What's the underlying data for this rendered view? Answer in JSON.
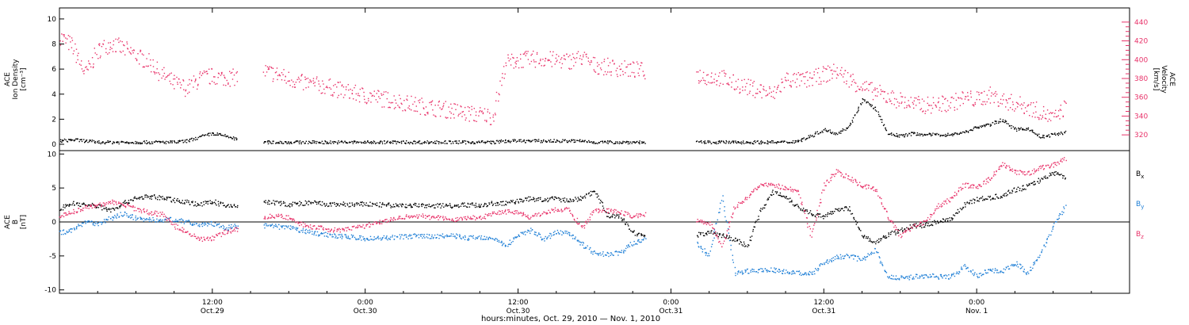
{
  "figure": {
    "xaxis_title": "hours:minutes, Oct. 29, 2010 — Nov. 1, 2010",
    "x_ticks": [
      {
        "value": 12,
        "line1": "12:00",
        "line2": "Oct.29"
      },
      {
        "value": 24,
        "line1": "0:00",
        "line2": "Oct.30"
      },
      {
        "value": 36,
        "line1": "12:00",
        "line2": "Oct.30"
      },
      {
        "value": 48,
        "line1": "0:00",
        "line2": "Oct.31"
      },
      {
        "value": 60,
        "line1": "12:00",
        "line2": "Oct.31"
      },
      {
        "value": 72,
        "line1": "0:00",
        "line2": "Nov. 1"
      }
    ],
    "xlim": [
      0,
      84
    ],
    "top_panel": {
      "left_label_lines": [
        "ACE",
        "Ion Density",
        "[cm⁻³]"
      ],
      "right_label_lines": [
        "ACE",
        "Velocity",
        "[km/s]"
      ],
      "left_ticks": [
        "0",
        "2",
        "4",
        "6",
        "8",
        "10"
      ],
      "right_ticks": [
        "320",
        "340",
        "360",
        "380",
        "400",
        "420",
        "440"
      ]
    },
    "bottom_panel": {
      "left_label_lines": [
        "ACE",
        "B",
        "[nT]"
      ],
      "left_ticks": [
        "-10",
        "-5",
        "0",
        "5",
        "10"
      ],
      "legend": [
        {
          "label": "Bx",
          "base": "B",
          "sub": "x",
          "color": "#000000"
        },
        {
          "label": "By",
          "base": "B",
          "sub": "y",
          "color": "#1f7fd6"
        },
        {
          "label": "Bz",
          "base": "B",
          "sub": "z",
          "color": "#e8336a"
        }
      ]
    }
  },
  "chart_data": [
    {
      "type": "scatter",
      "title": "",
      "xlabel": "hours:minutes, Oct. 29, 2010 — Nov. 1, 2010",
      "ylabel": "ACE Ion Density [cm⁻³]",
      "y2label": "ACE Velocity [km/s]",
      "xlim": [
        0,
        84
      ],
      "ylim": [
        0,
        10.5
      ],
      "y2lim": [
        310,
        450
      ],
      "x_units": "hours from 0:00 Oct. 29, 2010",
      "series": [
        {
          "axis": "left",
          "color": "#000000",
          "x": [
            0,
            1,
            2,
            3,
            4,
            5,
            6,
            7,
            8,
            9,
            10,
            11,
            12,
            13,
            14,
            15,
            16,
            17,
            18,
            19,
            20,
            21,
            22,
            23,
            24,
            25,
            26,
            27,
            28,
            29,
            30,
            31,
            32,
            33,
            34,
            35,
            36,
            37,
            38,
            39,
            40,
            41,
            42,
            43,
            44,
            45,
            46,
            47,
            48,
            49,
            50,
            51,
            52,
            53,
            54,
            55,
            56,
            57,
            58,
            59,
            60,
            61,
            62,
            63,
            64,
            65,
            66,
            67,
            68,
            69,
            70,
            71,
            72,
            73,
            74,
            75,
            76,
            77,
            78,
            79,
            80,
            81,
            82,
            83,
            84
          ],
          "values": [
            0.3,
            0.4,
            0.3,
            0.2,
            0.2,
            0.2,
            0.2,
            0.2,
            0.2,
            0.2,
            0.3,
            0.6,
            0.9,
            0.7,
            0.4,
            null,
            0.2,
            0.2,
            0.2,
            0.2,
            0.2,
            0.2,
            0.2,
            0.2,
            0.2,
            0.2,
            0.2,
            0.2,
            0.2,
            0.2,
            0.2,
            0.2,
            0.2,
            0.2,
            0.2,
            0.3,
            0.3,
            0.3,
            0.3,
            0.3,
            0.3,
            0.3,
            0.2,
            0.2,
            0.2,
            0.2,
            0.2,
            null,
            null,
            null,
            0.2,
            0.2,
            0.2,
            0.2,
            0.2,
            0.2,
            0.2,
            0.2,
            0.3,
            0.7,
            1.2,
            0.9,
            1.5,
            3.6,
            2.9,
            0.9,
            0.7,
            0.9,
            0.8,
            0.8,
            0.8,
            1.0,
            1.4,
            1.6,
            2.0,
            1.2,
            1.3,
            0.6,
            0.8,
            1.0,
            null,
            null,
            null,
            null,
            null
          ]
        },
        {
          "axis": "right",
          "color": "#e8336a",
          "x": [
            0,
            1,
            2,
            3,
            4,
            5,
            6,
            7,
            8,
            9,
            10,
            11,
            12,
            13,
            14,
            15,
            16,
            17,
            18,
            19,
            20,
            21,
            22,
            23,
            24,
            25,
            26,
            27,
            28,
            29,
            30,
            31,
            32,
            33,
            34,
            35,
            36,
            37,
            38,
            39,
            40,
            41,
            42,
            43,
            44,
            45,
            46,
            47,
            48,
            49,
            50,
            51,
            52,
            53,
            54,
            55,
            56,
            57,
            58,
            59,
            60,
            61,
            62,
            63,
            64,
            65,
            66,
            67,
            68,
            69,
            70,
            71,
            72,
            73,
            74,
            75,
            76,
            77,
            78,
            79,
            80,
            81,
            82,
            83,
            84
          ],
          "values": [
            425,
            415,
            385,
            410,
            418,
            412,
            405,
            398,
            385,
            375,
            370,
            380,
            383,
            381,
            382,
            null,
            388,
            385,
            380,
            376,
            374,
            372,
            368,
            365,
            362,
            360,
            357,
            355,
            352,
            350,
            348,
            346,
            343,
            342,
            340,
            397,
            400,
            401,
            401,
            400,
            399,
            403,
            394,
            393,
            391,
            390,
            388,
            null,
            null,
            null,
            384,
            382,
            381,
            375,
            371,
            368,
            363,
            380,
            378,
            380,
            385,
            388,
            380,
            371,
            366,
            361,
            357,
            353,
            352,
            353,
            354,
            360,
            358,
            363,
            357,
            354,
            350,
            345,
            337,
            352,
            null,
            null,
            null,
            null,
            null
          ]
        }
      ]
    },
    {
      "type": "scatter",
      "title": "",
      "xlabel": "hours:minutes, Oct. 29, 2010 — Nov. 1, 2010",
      "ylabel": "ACE B [nT]",
      "xlim": [
        0,
        84
      ],
      "ylim": [
        -10.5,
        10.5
      ],
      "x_units": "hours from 0:00 Oct. 29, 2010",
      "series": [
        {
          "name": "Bx",
          "color": "#000000",
          "x": [
            0,
            1,
            2,
            3,
            4,
            5,
            6,
            7,
            8,
            9,
            10,
            11,
            12,
            13,
            14,
            15,
            16,
            17,
            18,
            19,
            20,
            21,
            22,
            23,
            24,
            25,
            26,
            27,
            28,
            29,
            30,
            31,
            32,
            33,
            34,
            35,
            36,
            37,
            38,
            39,
            40,
            41,
            42,
            43,
            44,
            45,
            46,
            47,
            48,
            49,
            50,
            51,
            52,
            53,
            54,
            55,
            56,
            57,
            58,
            59,
            60,
            61,
            62,
            63,
            64,
            65,
            66,
            67,
            68,
            69,
            70,
            71,
            72,
            73,
            74,
            75,
            76,
            77,
            78,
            79,
            80,
            81,
            82,
            83,
            84
          ],
          "values": [
            2.0,
            2.8,
            2.6,
            2.4,
            1.8,
            2.8,
            3.6,
            3.8,
            3.6,
            3.3,
            3.0,
            2.6,
            3.1,
            2.4,
            2.5,
            null,
            3.0,
            2.9,
            2.6,
            2.8,
            2.9,
            2.6,
            2.7,
            2.6,
            2.7,
            2.6,
            2.5,
            2.5,
            2.5,
            2.4,
            2.5,
            2.5,
            2.6,
            2.5,
            2.8,
            2.8,
            3.2,
            3.5,
            3.3,
            3.5,
            3.2,
            3.6,
            4.7,
            1.0,
            0.9,
            -1.5,
            -2.0,
            null,
            null,
            null,
            -1.9,
            -1.4,
            -2.0,
            -2.5,
            -3.5,
            1.8,
            4.5,
            3.8,
            2.2,
            1.4,
            0.7,
            2.0,
            2.0,
            -2.0,
            -3.0,
            -1.8,
            -1.2,
            -0.5,
            -0.4,
            0.2,
            0.6,
            2.6,
            3.4,
            3.6,
            4.0,
            4.8,
            5.3,
            6.3,
            7.3,
            6.7,
            null,
            null,
            null,
            null,
            null
          ]
        },
        {
          "name": "By",
          "color": "#1f7fd6",
          "x": [
            0,
            1,
            2,
            3,
            4,
            5,
            6,
            7,
            8,
            9,
            10,
            11,
            12,
            13,
            14,
            15,
            16,
            17,
            18,
            19,
            20,
            21,
            22,
            23,
            24,
            25,
            26,
            27,
            28,
            29,
            30,
            31,
            32,
            33,
            34,
            35,
            36,
            37,
            38,
            39,
            40,
            41,
            42,
            43,
            44,
            45,
            46,
            47,
            48,
            49,
            50,
            51,
            52,
            53,
            54,
            55,
            56,
            57,
            58,
            59,
            60,
            61,
            62,
            63,
            64,
            65,
            66,
            67,
            68,
            69,
            70,
            71,
            72,
            73,
            74,
            75,
            76,
            77,
            78,
            79,
            80,
            81,
            82,
            83,
            84
          ],
          "values": [
            -1.5,
            -1.2,
            0.2,
            -0.2,
            0.6,
            1.3,
            0.6,
            0.4,
            0.3,
            0.5,
            0.0,
            -0.3,
            -0.2,
            -0.8,
            -0.5,
            null,
            -0.5,
            -0.6,
            -0.8,
            -1.2,
            -1.6,
            -1.8,
            -2.0,
            -2.2,
            -2.4,
            -2.3,
            -2.2,
            -2.1,
            -2.0,
            -2.1,
            -2.0,
            -2.0,
            -2.3,
            -2.2,
            -2.2,
            -3.5,
            -1.8,
            -1.2,
            -2.4,
            -1.5,
            -1.5,
            -3.2,
            -4.5,
            -4.7,
            -4.5,
            -3.0,
            -2.5,
            null,
            null,
            null,
            -3.1,
            -5.0,
            4.0,
            -7.6,
            -7.2,
            -7.0,
            -7.0,
            -7.3,
            -7.5,
            -7.5,
            -6.0,
            -5.1,
            -5.0,
            -5.5,
            -4.0,
            -8.0,
            -8.2,
            -8.0,
            -7.8,
            -8.0,
            -8.0,
            -6.5,
            -7.8,
            -7.0,
            -7.2,
            -6.0,
            -7.5,
            -4.5,
            -0.5,
            2.5,
            null,
            null,
            null,
            null,
            null
          ]
        },
        {
          "name": "Bz",
          "color": "#e8336a",
          "x": [
            0,
            1,
            2,
            3,
            4,
            5,
            6,
            7,
            8,
            9,
            10,
            11,
            12,
            13,
            14,
            15,
            16,
            17,
            18,
            19,
            20,
            21,
            22,
            23,
            24,
            25,
            26,
            27,
            28,
            29,
            30,
            31,
            32,
            33,
            34,
            35,
            36,
            37,
            38,
            39,
            40,
            41,
            42,
            43,
            44,
            45,
            46,
            47,
            48,
            49,
            50,
            51,
            52,
            53,
            54,
            55,
            56,
            57,
            58,
            59,
            60,
            61,
            62,
            63,
            64,
            65,
            66,
            67,
            68,
            69,
            70,
            71,
            72,
            73,
            74,
            75,
            76,
            77,
            78,
            79,
            80,
            81,
            82,
            83,
            84
          ],
          "values": [
            1.0,
            1.5,
            2.2,
            2.5,
            3.0,
            2.6,
            2.0,
            1.5,
            1.2,
            -0.5,
            -1.5,
            -2.5,
            -2.3,
            -1.4,
            -1.0,
            null,
            0.8,
            1.0,
            0.6,
            -0.3,
            -0.7,
            -1.0,
            -1.2,
            -0.8,
            -0.5,
            0.0,
            0.5,
            0.8,
            1.0,
            0.8,
            0.6,
            0.4,
            0.7,
            0.6,
            1.4,
            1.6,
            1.5,
            0.7,
            1.5,
            1.9,
            1.9,
            -1.0,
            1.8,
            1.7,
            1.5,
            0.9,
            1.2,
            null,
            null,
            null,
            0.2,
            0.0,
            -3.5,
            2.3,
            3.8,
            5.5,
            5.6,
            5.0,
            4.5,
            -2.0,
            5.5,
            7.5,
            6.5,
            5.3,
            5.0,
            1.0,
            -2.0,
            -0.5,
            0.2,
            2.5,
            3.5,
            5.5,
            5.2,
            6.4,
            8.6,
            7.4,
            7.2,
            8.0,
            8.5,
            9.3,
            null,
            null,
            null,
            null,
            null
          ]
        }
      ]
    }
  ]
}
